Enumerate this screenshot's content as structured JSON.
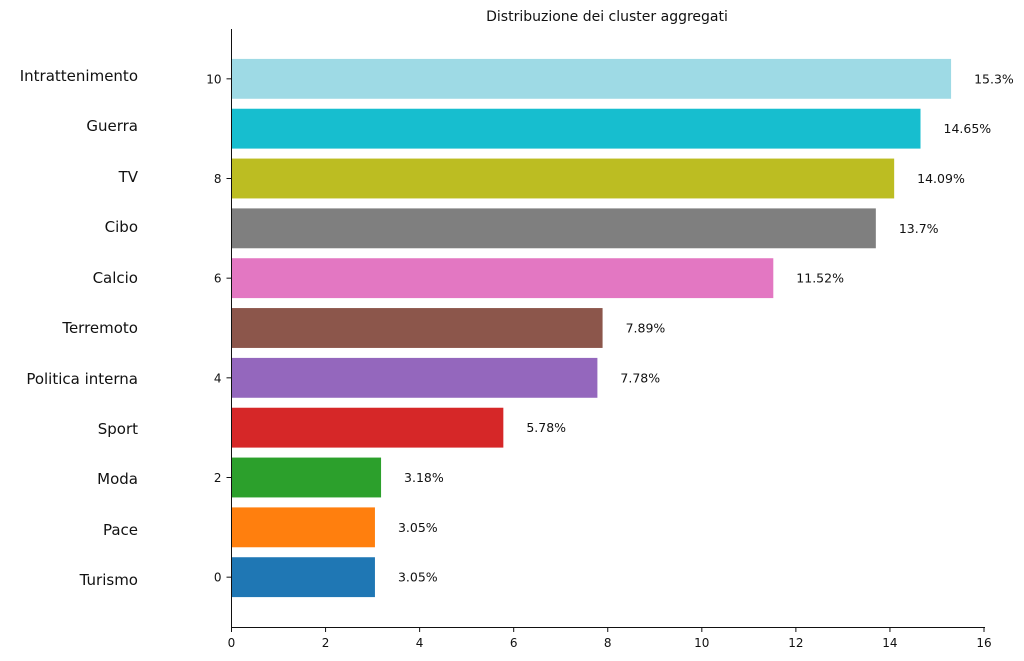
{
  "chart_data": {
    "type": "bar",
    "orientation": "horizontal",
    "title": "Distribuzione dei cluster aggregati",
    "xlabel": "",
    "ylabel": "",
    "xlim": [
      0,
      16
    ],
    "ylim": [
      -1,
      11
    ],
    "x_ticks": [
      0,
      2,
      4,
      6,
      8,
      10,
      12,
      14,
      16
    ],
    "y_ticks": [
      0,
      2,
      4,
      6,
      8,
      10
    ],
    "grid": false,
    "categories": [
      "Turismo",
      "Pace",
      "Moda",
      "Sport",
      "Politica interna",
      "Terremoto",
      "Calcio",
      "Cibo",
      "TV",
      "Guerra",
      "Intrattenimento"
    ],
    "values": [
      3.05,
      3.05,
      3.18,
      5.78,
      7.78,
      7.89,
      11.52,
      13.7,
      14.09,
      14.65,
      15.3
    ],
    "value_labels": [
      "3.05%",
      "3.05%",
      "3.18%",
      "5.78%",
      "7.78%",
      "7.89%",
      "11.52%",
      "13.7%",
      "14.09%",
      "14.65%",
      "15.3%"
    ],
    "colors": [
      "#1f77b4",
      "#ff7f0e",
      "#2ca02c",
      "#d62728",
      "#9467bd",
      "#8c564b",
      "#e377c2",
      "#7f7f7f",
      "#bcbd22",
      "#17becf",
      "#9edae5"
    ]
  }
}
